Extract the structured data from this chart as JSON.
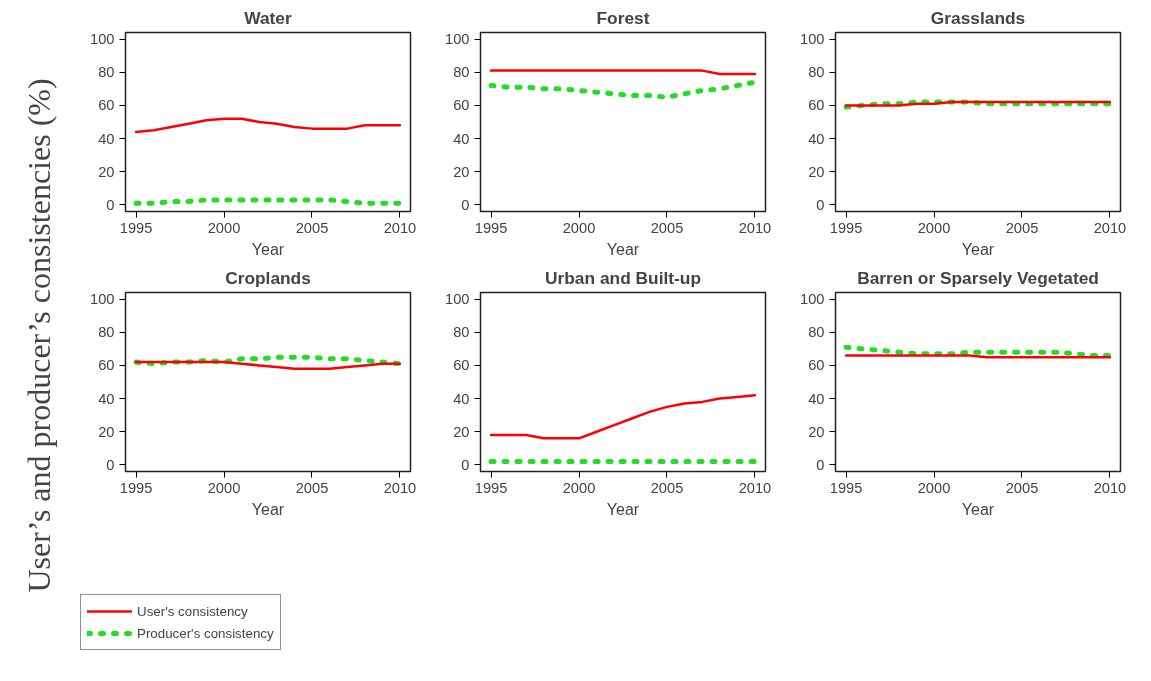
{
  "chart_data": [
    {
      "type": "line",
      "title": "Water",
      "xlabel": "Year",
      "ylabel": "User’s and producer’s consistencies (%)",
      "legend": "bottom left",
      "x": [
        1995,
        1996,
        1997,
        1998,
        1999,
        2000,
        2001,
        2002,
        2003,
        2004,
        2005,
        2006,
        2007,
        2008,
        2009,
        2010
      ],
      "xlim": [
        1994.4,
        2010.6
      ],
      "xticks": [
        1995,
        2000,
        2005,
        2010
      ],
      "ylim": [
        -4,
        104
      ],
      "yticks": [
        0,
        20,
        40,
        60,
        80,
        100
      ],
      "series": [
        {
          "name": "User's consistency",
          "color": "#ff0000",
          "line_style": "solid",
          "values": [
            44,
            45,
            47,
            49,
            51,
            52,
            52,
            50,
            49,
            47,
            46,
            46,
            46,
            48,
            48,
            48
          ]
        },
        {
          "name": "Producer's consistency",
          "color": "#22dd22",
          "line_style": "dashed",
          "values": [
            1,
            1,
            2,
            2,
            3,
            3,
            3,
            3,
            3,
            3,
            3,
            3,
            2,
            1,
            1,
            1
          ]
        }
      ]
    },
    {
      "type": "line",
      "title": "Forest",
      "xlabel": "Year",
      "x": [
        1995,
        1996,
        1997,
        1998,
        1999,
        2000,
        2001,
        2002,
        2003,
        2004,
        2005,
        2006,
        2007,
        2008,
        2009,
        2010
      ],
      "xlim": [
        1994.4,
        2010.6
      ],
      "xticks": [
        1995,
        2000,
        2005,
        2010
      ],
      "ylim": [
        -4,
        104
      ],
      "yticks": [
        0,
        20,
        40,
        60,
        80,
        100
      ],
      "series": [
        {
          "color": "#ff0000",
          "line_style": "solid",
          "values": [
            81,
            81,
            81,
            81,
            81,
            81,
            81,
            81,
            81,
            81,
            81,
            81,
            81,
            79,
            79,
            79
          ]
        },
        {
          "color": "#22dd22",
          "line_style": "dashed",
          "values": [
            72,
            71,
            71,
            70,
            70,
            69,
            68,
            67,
            66,
            66,
            65,
            67,
            69,
            70,
            72,
            74
          ]
        }
      ]
    },
    {
      "type": "line",
      "title": "Grasslands",
      "xlabel": "Year",
      "x": [
        1995,
        1996,
        1997,
        1998,
        1999,
        2000,
        2001,
        2002,
        2003,
        2004,
        2005,
        2006,
        2007,
        2008,
        2009,
        2010
      ],
      "xlim": [
        1994.4,
        2010.6
      ],
      "xticks": [
        1995,
        2000,
        2005,
        2010
      ],
      "ylim": [
        -4,
        104
      ],
      "yticks": [
        0,
        20,
        40,
        60,
        80,
        100
      ],
      "series": [
        {
          "color": "#ff0000",
          "line_style": "solid",
          "values": [
            60,
            60,
            60,
            60,
            61,
            61,
            62,
            62,
            62,
            62,
            62,
            62,
            62,
            62,
            62,
            62
          ]
        },
        {
          "color": "#22dd22",
          "line_style": "dashed",
          "values": [
            59,
            60,
            61,
            61,
            62,
            62,
            62,
            62,
            61,
            61,
            61,
            61,
            61,
            61,
            61,
            61
          ]
        }
      ]
    },
    {
      "type": "line",
      "title": "Croplands",
      "xlabel": "Year",
      "x": [
        1995,
        1996,
        1997,
        1998,
        1999,
        2000,
        2001,
        2002,
        2003,
        2004,
        2005,
        2006,
        2007,
        2008,
        2009,
        2010
      ],
      "xlim": [
        1994.4,
        2010.6
      ],
      "xticks": [
        1995,
        2000,
        2005,
        2010
      ],
      "ylim": [
        -4,
        104
      ],
      "yticks": [
        0,
        20,
        40,
        60,
        80,
        100
      ],
      "series": [
        {
          "color": "#ff0000",
          "line_style": "solid",
          "values": [
            62,
            62,
            62,
            62,
            62,
            62,
            61,
            60,
            59,
            58,
            58,
            58,
            59,
            60,
            61,
            61
          ]
        },
        {
          "color": "#22dd22",
          "line_style": "dashed",
          "values": [
            62,
            61,
            62,
            62,
            63,
            62,
            64,
            64,
            65,
            65,
            65,
            64,
            64,
            63,
            62,
            61
          ]
        }
      ]
    },
    {
      "type": "line",
      "title": "Urban and Built-up",
      "xlabel": "Year",
      "x": [
        1995,
        1996,
        1997,
        1998,
        1999,
        2000,
        2001,
        2002,
        2003,
        2004,
        2005,
        2006,
        2007,
        2008,
        2009,
        2010
      ],
      "xlim": [
        1994.4,
        2010.6
      ],
      "xticks": [
        1995,
        2000,
        2005,
        2010
      ],
      "ylim": [
        -4,
        104
      ],
      "yticks": [
        0,
        20,
        40,
        60,
        80,
        100
      ],
      "series": [
        {
          "color": "#ff0000",
          "line_style": "solid",
          "values": [
            18,
            18,
            18,
            16,
            16,
            16,
            20,
            24,
            28,
            32,
            35,
            37,
            38,
            40,
            41,
            42
          ]
        },
        {
          "color": "#22dd22",
          "line_style": "dashed",
          "values": [
            2,
            2,
            2,
            2,
            2,
            2,
            2,
            2,
            2,
            2,
            2,
            2,
            2,
            2,
            2,
            2
          ]
        }
      ]
    },
    {
      "type": "line",
      "title": "Barren or Sparsely Vegetated",
      "xlabel": "Year",
      "x": [
        1995,
        1996,
        1997,
        1998,
        1999,
        2000,
        2001,
        2002,
        2003,
        2004,
        2005,
        2006,
        2007,
        2008,
        2009,
        2010
      ],
      "xlim": [
        1994.4,
        2010.6
      ],
      "xticks": [
        1995,
        2000,
        2005,
        2010
      ],
      "ylim": [
        -4,
        104
      ],
      "yticks": [
        0,
        20,
        40,
        60,
        80,
        100
      ],
      "series": [
        {
          "color": "#ff0000",
          "line_style": "solid",
          "values": [
            66,
            66,
            66,
            66,
            66,
            66,
            66,
            66,
            65,
            65,
            65,
            65,
            65,
            65,
            65,
            65
          ]
        },
        {
          "color": "#22dd22",
          "line_style": "dashed",
          "values": [
            71,
            70,
            69,
            68,
            67,
            67,
            67,
            68,
            68,
            68,
            68,
            68,
            68,
            67,
            66,
            66
          ]
        }
      ]
    }
  ]
}
